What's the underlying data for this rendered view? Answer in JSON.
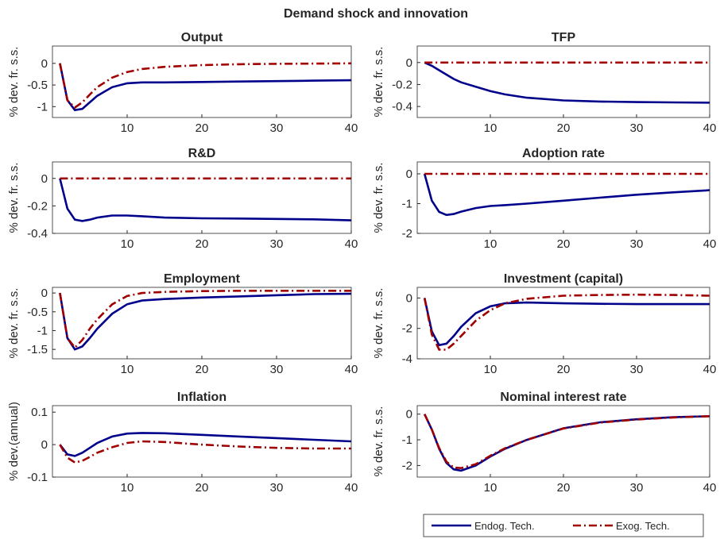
{
  "title": "Demand shock and innovation",
  "series": [
    {
      "name": "Endog. Tech.",
      "color": "#00008b",
      "dash": "solid"
    },
    {
      "name": "Exog. Tech.",
      "color": "#a00000",
      "dash": "dash-dot"
    }
  ],
  "legend": "bottom-right",
  "chart_data": [
    {
      "type": "line",
      "title": "Output",
      "ylabel": "% dev. fr. s.s.",
      "x": [
        1,
        2,
        3,
        4,
        5,
        6,
        8,
        10,
        12,
        15,
        20,
        25,
        30,
        35,
        40
      ],
      "xlim": [
        0,
        40
      ],
      "xticks": [
        10,
        20,
        30,
        40
      ],
      "ylim": [
        -1.25,
        0.4
      ],
      "yticks": [
        -1,
        -0.5,
        0
      ],
      "series": [
        {
          "values": [
            0,
            -0.85,
            -1.08,
            -1.05,
            -0.9,
            -0.75,
            -0.55,
            -0.46,
            -0.44,
            -0.44,
            -0.43,
            -0.42,
            -0.41,
            -0.4,
            -0.39
          ]
        },
        {
          "values": [
            0,
            -0.85,
            -1.02,
            -0.9,
            -0.72,
            -0.55,
            -0.33,
            -0.2,
            -0.13,
            -0.08,
            -0.04,
            -0.02,
            -0.01,
            -0.005,
            0
          ]
        }
      ]
    },
    {
      "type": "line",
      "title": "TFP",
      "ylabel": "% dev. fr. s.s.",
      "x": [
        1,
        2,
        3,
        4,
        5,
        6,
        8,
        10,
        12,
        15,
        20,
        25,
        30,
        35,
        40
      ],
      "xlim": [
        0,
        40
      ],
      "xticks": [
        10,
        20,
        30,
        40
      ],
      "ylim": [
        -0.5,
        0.15
      ],
      "yticks": [
        -0.4,
        -0.2,
        0
      ],
      "series": [
        {
          "values": [
            0,
            -0.03,
            -0.07,
            -0.11,
            -0.15,
            -0.18,
            -0.22,
            -0.26,
            -0.29,
            -0.32,
            -0.345,
            -0.355,
            -0.36,
            -0.363,
            -0.365
          ]
        },
        {
          "values": [
            0,
            0,
            0,
            0,
            0,
            0,
            0,
            0,
            0,
            0,
            0,
            0,
            0,
            0,
            0
          ]
        }
      ]
    },
    {
      "type": "line",
      "title": "R&D",
      "ylabel": "% dev. fr. s.s.",
      "x": [
        1,
        2,
        3,
        4,
        5,
        6,
        8,
        10,
        12,
        15,
        20,
        25,
        30,
        35,
        40
      ],
      "xlim": [
        0,
        40
      ],
      "xticks": [
        10,
        20,
        30,
        40
      ],
      "ylim": [
        -0.4,
        0.12
      ],
      "yticks": [
        -0.4,
        -0.2,
        0
      ],
      "series": [
        {
          "values": [
            0,
            -0.22,
            -0.3,
            -0.31,
            -0.3,
            -0.285,
            -0.27,
            -0.27,
            -0.275,
            -0.285,
            -0.29,
            -0.292,
            -0.295,
            -0.298,
            -0.305
          ]
        },
        {
          "values": [
            0,
            0,
            0,
            0,
            0,
            0,
            0,
            0,
            0,
            0,
            0,
            0,
            0,
            0,
            0
          ]
        }
      ]
    },
    {
      "type": "line",
      "title": "Adoption rate",
      "ylabel": "% dev. fr. s.s.",
      "x": [
        1,
        2,
        3,
        4,
        5,
        6,
        8,
        10,
        12,
        15,
        20,
        25,
        30,
        35,
        40
      ],
      "xlim": [
        0,
        40
      ],
      "xticks": [
        10,
        20,
        30,
        40
      ],
      "ylim": [
        -2,
        0.4
      ],
      "yticks": [
        -2,
        -1,
        0
      ],
      "series": [
        {
          "values": [
            0,
            -0.9,
            -1.28,
            -1.38,
            -1.35,
            -1.27,
            -1.15,
            -1.08,
            -1.05,
            -1.0,
            -0.9,
            -0.8,
            -0.7,
            -0.62,
            -0.55
          ]
        },
        {
          "values": [
            0,
            0,
            0,
            0,
            0,
            0,
            0,
            0,
            0,
            0,
            0,
            0,
            0,
            0,
            0
          ]
        }
      ]
    },
    {
      "type": "line",
      "title": "Employment",
      "ylabel": "% dev. fr. s.s.",
      "x": [
        1,
        2,
        3,
        4,
        5,
        6,
        8,
        10,
        12,
        15,
        20,
        25,
        30,
        35,
        40
      ],
      "xlim": [
        0,
        40
      ],
      "xticks": [
        10,
        20,
        30,
        40
      ],
      "ylim": [
        -1.75,
        0.15
      ],
      "yticks": [
        -1.5,
        -1,
        -0.5,
        0
      ],
      "series": [
        {
          "values": [
            0,
            -1.2,
            -1.5,
            -1.42,
            -1.2,
            -0.95,
            -0.55,
            -0.3,
            -0.2,
            -0.16,
            -0.12,
            -0.09,
            -0.06,
            -0.03,
            -0.02
          ]
        },
        {
          "values": [
            0,
            -1.2,
            -1.45,
            -1.25,
            -0.95,
            -0.7,
            -0.3,
            -0.08,
            0,
            0.03,
            0.05,
            0.06,
            0.06,
            0.06,
            0.06
          ]
        }
      ]
    },
    {
      "type": "line",
      "title": "Investment (capital)",
      "ylabel": "% dev. fr. s.s.",
      "x": [
        1,
        2,
        3,
        4,
        5,
        6,
        8,
        10,
        12,
        15,
        20,
        25,
        30,
        35,
        40
      ],
      "xlim": [
        0,
        40
      ],
      "xticks": [
        10,
        20,
        30,
        40
      ],
      "ylim": [
        -4,
        0.7
      ],
      "yticks": [
        -4,
        -2,
        0
      ],
      "series": [
        {
          "values": [
            0,
            -2.2,
            -3.1,
            -3.0,
            -2.5,
            -1.9,
            -1.0,
            -0.55,
            -0.35,
            -0.3,
            -0.35,
            -0.38,
            -0.4,
            -0.4,
            -0.4
          ]
        },
        {
          "values": [
            0,
            -2.4,
            -3.4,
            -3.4,
            -3.0,
            -2.5,
            -1.5,
            -0.8,
            -0.35,
            -0.05,
            0.15,
            0.2,
            0.22,
            0.2,
            0.15
          ]
        }
      ]
    },
    {
      "type": "line",
      "title": "Inflation",
      "ylabel": "% dev.(annual)",
      "x": [
        1,
        2,
        3,
        4,
        5,
        6,
        8,
        10,
        12,
        15,
        20,
        25,
        30,
        35,
        40
      ],
      "xlim": [
        0,
        40
      ],
      "xticks": [
        10,
        20,
        30,
        40
      ],
      "ylim": [
        -0.1,
        0.12
      ],
      "yticks": [
        -0.1,
        0,
        0.1
      ],
      "series": [
        {
          "values": [
            0,
            -0.03,
            -0.035,
            -0.025,
            -0.01,
            0.005,
            0.025,
            0.034,
            0.036,
            0.035,
            0.03,
            0.025,
            0.02,
            0.015,
            0.01
          ]
        },
        {
          "values": [
            0,
            -0.04,
            -0.055,
            -0.05,
            -0.038,
            -0.025,
            -0.008,
            0.005,
            0.01,
            0.008,
            0,
            -0.006,
            -0.01,
            -0.012,
            -0.012
          ]
        }
      ]
    },
    {
      "type": "line",
      "title": "Nominal interest rate",
      "ylabel": "% dev. fr. s.s.",
      "x": [
        1,
        2,
        3,
        4,
        5,
        6,
        8,
        10,
        12,
        15,
        20,
        25,
        30,
        35,
        40
      ],
      "xlim": [
        0,
        40
      ],
      "xticks": [
        10,
        20,
        30,
        40
      ],
      "ylim": [
        -2.45,
        0.33
      ],
      "yticks": [
        -2,
        -1,
        0
      ],
      "series": [
        {
          "values": [
            0,
            -0.6,
            -1.35,
            -1.9,
            -2.15,
            -2.2,
            -2.0,
            -1.65,
            -1.35,
            -1.0,
            -0.55,
            -0.32,
            -0.2,
            -0.12,
            -0.08
          ]
        },
        {
          "values": [
            0,
            -0.6,
            -1.32,
            -1.85,
            -2.08,
            -2.1,
            -1.95,
            -1.62,
            -1.33,
            -1.0,
            -0.56,
            -0.33,
            -0.21,
            -0.13,
            -0.08
          ]
        }
      ]
    }
  ]
}
